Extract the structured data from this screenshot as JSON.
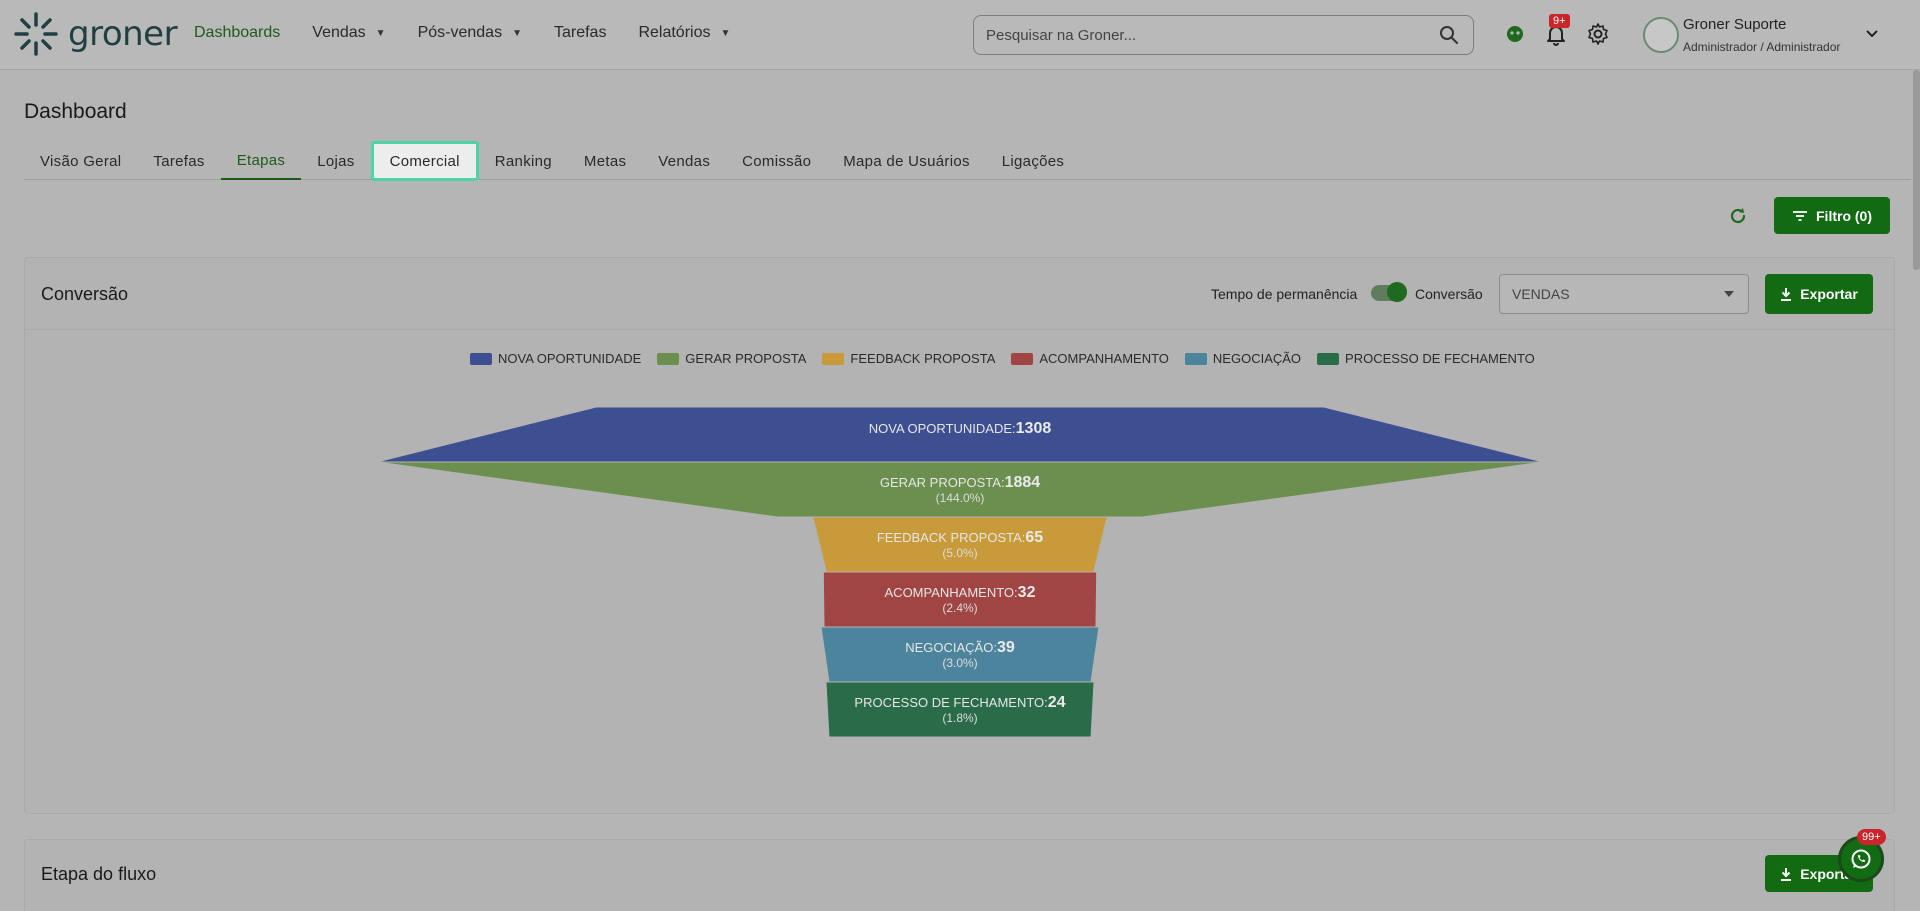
{
  "app": {
    "logo_text": "groner"
  },
  "nav": {
    "items": [
      {
        "label": "Dashboards",
        "active": true,
        "has_menu": false
      },
      {
        "label": "Vendas",
        "active": false,
        "has_menu": true
      },
      {
        "label": "Pós-vendas",
        "active": false,
        "has_menu": true
      },
      {
        "label": "Tarefas",
        "active": false,
        "has_menu": false
      },
      {
        "label": "Relatórios",
        "active": false,
        "has_menu": true
      }
    ]
  },
  "search": {
    "placeholder": "Pesquisar na Groner..."
  },
  "header": {
    "notification_badge": "9+",
    "user_name": "Groner Suporte",
    "user_role": "Administrador / Administrador"
  },
  "page": {
    "title": "Dashboard",
    "tabs": [
      {
        "label": "Visão Geral",
        "state": "normal"
      },
      {
        "label": "Tarefas",
        "state": "normal"
      },
      {
        "label": "Etapas",
        "state": "active"
      },
      {
        "label": "Lojas",
        "state": "normal"
      },
      {
        "label": "Comercial",
        "state": "focused"
      },
      {
        "label": "Ranking",
        "state": "normal"
      },
      {
        "label": "Metas",
        "state": "normal"
      },
      {
        "label": "Vendas",
        "state": "normal"
      },
      {
        "label": "Comissão",
        "state": "normal"
      },
      {
        "label": "Mapa de Usuários",
        "state": "normal"
      },
      {
        "label": "Ligações",
        "state": "normal"
      }
    ],
    "filter_label": "Filtro (0)"
  },
  "conversion_card": {
    "title": "Conversão",
    "toggle_left_label": "Tempo de permanência",
    "toggle_right_label": "Conversão",
    "toggle_on": true,
    "select_value": "VENDAS",
    "export_label": "Exportar"
  },
  "flow_card": {
    "title": "Etapa do fluxo",
    "export_label": "Exportar"
  },
  "chat": {
    "badge": "99+"
  },
  "colors": {
    "accent": "#126b12",
    "nova": "#3d4f91",
    "gerar": "#6b8f4f",
    "feedback": "#c89a3a",
    "acompanhamento": "#a04444",
    "negociacao": "#4d849d",
    "fechamento": "#2a6b4a"
  },
  "chart_data": {
    "type": "funnel",
    "legend_position": "top",
    "stages": [
      {
        "name": "NOVA OPORTUNIDADE",
        "value": 1308,
        "percent": ""
      },
      {
        "name": "GERAR PROPOSTA",
        "value": 1884,
        "percent": "(144.0%)"
      },
      {
        "name": "FEEDBACK PROPOSTA",
        "value": 65,
        "percent": "(5.0%)"
      },
      {
        "name": "ACOMPANHAMENTO",
        "value": 32,
        "percent": "(2.4%)"
      },
      {
        "name": "NEGOCIAÇÃO",
        "value": 39,
        "percent": "(3.0%)"
      },
      {
        "name": "PROCESSO DE FECHAMENTO",
        "value": 24,
        "percent": "(1.8%)"
      }
    ]
  }
}
